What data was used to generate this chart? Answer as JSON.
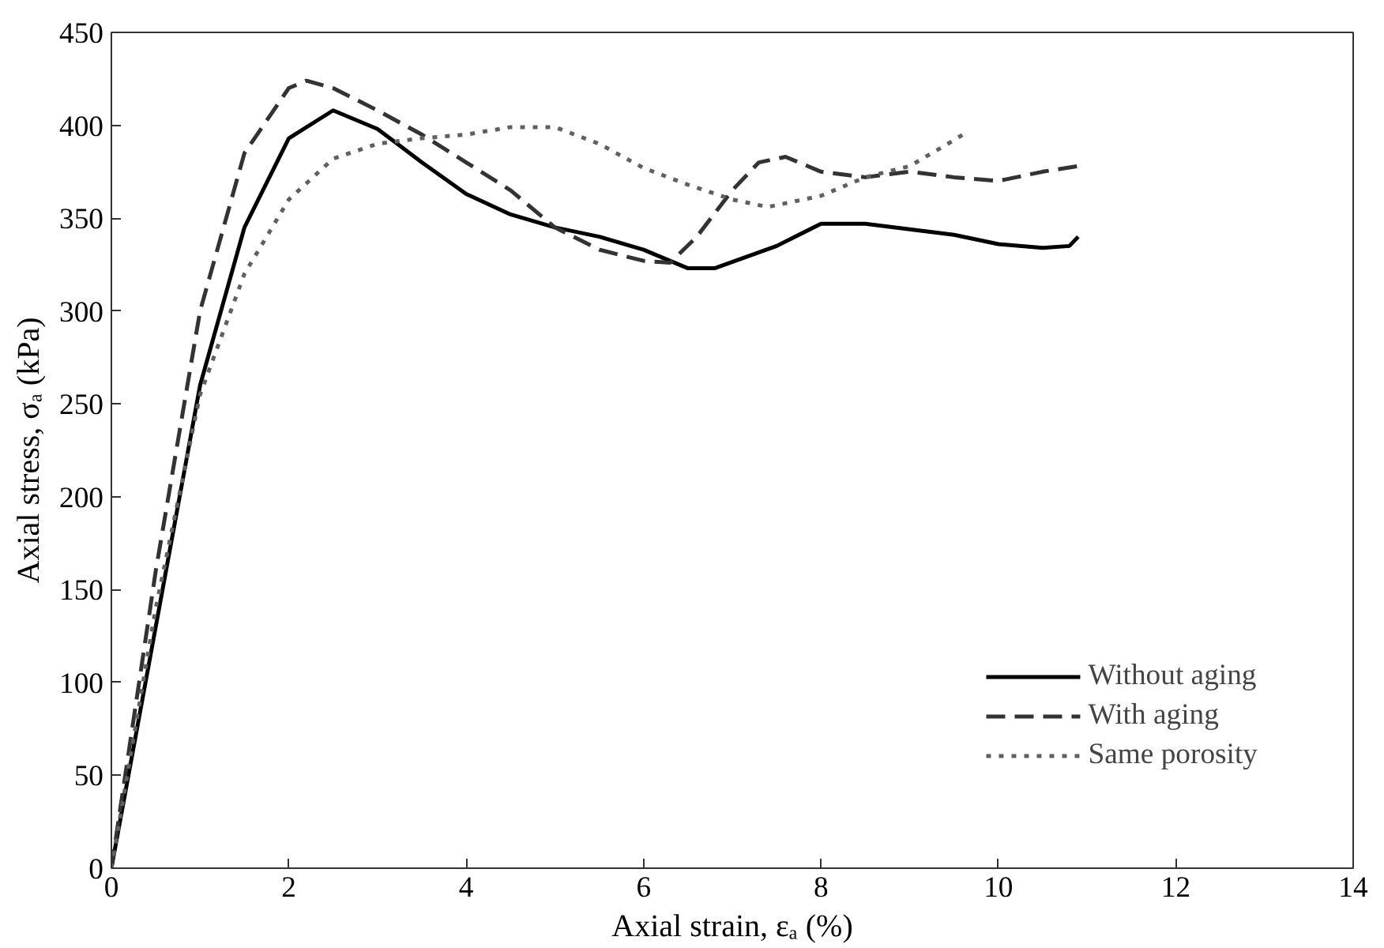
{
  "chart_data": {
    "type": "line",
    "xlabel": "Axial strain, εₐ (%)",
    "ylabel": "Axial stress, σₐ (kPa)",
    "xlim": [
      0,
      14
    ],
    "ylim": [
      0,
      450
    ],
    "xticks": [
      0,
      2,
      4,
      6,
      8,
      10,
      12,
      14
    ],
    "yticks": [
      0,
      50,
      100,
      150,
      200,
      250,
      300,
      350,
      400,
      450
    ],
    "grid": false,
    "legend": "bottom right",
    "series": [
      {
        "name": "Without aging",
        "color": "#000000",
        "line_style": "solid",
        "x": [
          0,
          0.5,
          1,
          1.5,
          2,
          2.5,
          3,
          3.5,
          4,
          4.5,
          5,
          5.5,
          6,
          6.5,
          6.8,
          7.5,
          8,
          8.5,
          9,
          9.5,
          10,
          10.5,
          10.8,
          10.9
        ],
        "values": [
          0,
          130,
          260,
          345,
          393,
          408,
          398,
          380,
          363,
          352,
          345,
          340,
          333,
          323,
          323,
          335,
          347,
          347,
          344,
          341,
          336,
          334,
          335,
          340
        ]
      },
      {
        "name": "With aging",
        "color": "#333333",
        "line_style": "dashed",
        "x": [
          0,
          0.5,
          1,
          1.5,
          2,
          2.2,
          2.5,
          3,
          3.5,
          4,
          4.5,
          5,
          5.5,
          6,
          6.3,
          6.6,
          7,
          7.3,
          7.6,
          8,
          8.5,
          9,
          9.5,
          10,
          10.5,
          10.9
        ],
        "values": [
          0,
          160,
          300,
          385,
          420,
          424,
          420,
          408,
          395,
          380,
          365,
          345,
          333,
          327,
          326,
          340,
          365,
          380,
          383,
          375,
          372,
          375,
          372,
          370,
          375,
          378
        ]
      },
      {
        "name": "Same porosity",
        "color": "#606060",
        "line_style": "dotted",
        "x": [
          0,
          0.5,
          1,
          1.5,
          2,
          2.5,
          3,
          3.5,
          4,
          4.5,
          5,
          5.5,
          6,
          6.5,
          7,
          7.4,
          8,
          8.5,
          9,
          9.5,
          9.6
        ],
        "values": [
          0,
          140,
          255,
          320,
          360,
          382,
          390,
          393,
          395,
          399,
          399,
          390,
          377,
          368,
          360,
          356,
          362,
          372,
          378,
          392,
          395
        ]
      }
    ]
  }
}
